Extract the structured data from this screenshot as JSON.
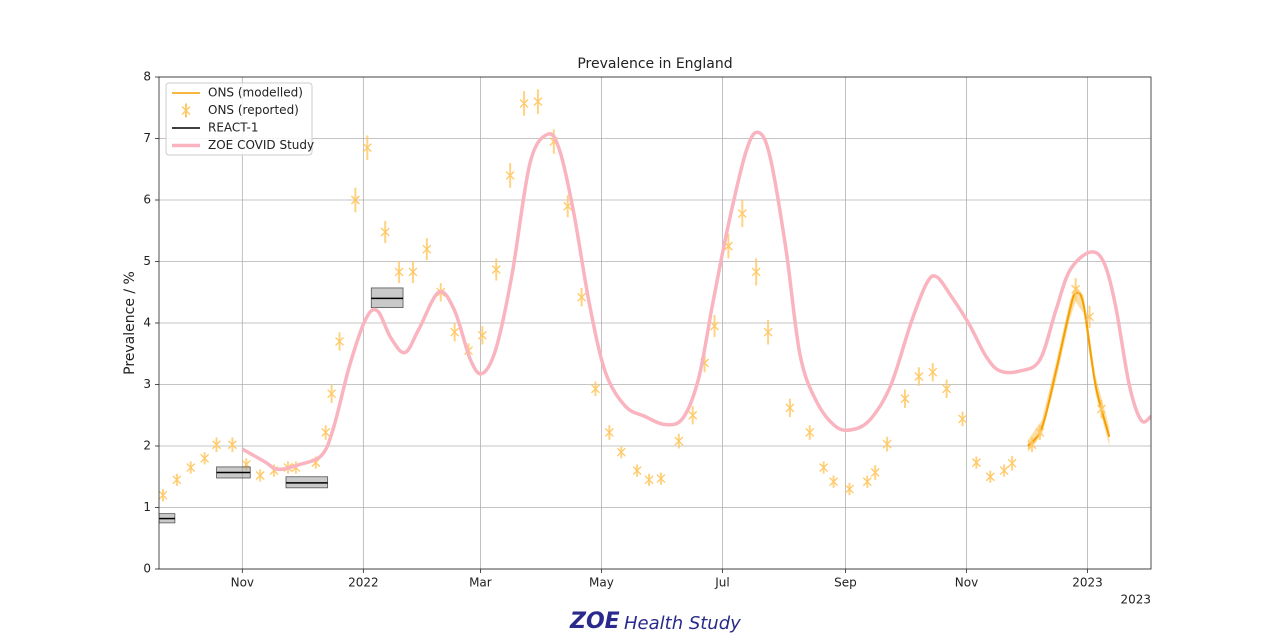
{
  "chart_data": {
    "type": "line",
    "title": "Prevalence in England",
    "ylabel": "Prevalence / %",
    "x_offset_label": "2023",
    "xlim": [
      "2021-09-20",
      "2023-02-02"
    ],
    "xticks": [
      {
        "value": "2021-11-01",
        "label": "Nov"
      },
      {
        "value": "2022-01-01",
        "label": "2022"
      },
      {
        "value": "2022-03-01",
        "label": "Mar"
      },
      {
        "value": "2022-05-01",
        "label": "May"
      },
      {
        "value": "2022-07-01",
        "label": "Jul"
      },
      {
        "value": "2022-09-01",
        "label": "Sep"
      },
      {
        "value": "2022-11-01",
        "label": "Nov"
      },
      {
        "value": "2023-01-01",
        "label": "2023"
      }
    ],
    "ylim": [
      0,
      8
    ],
    "yticks": [
      0,
      1,
      2,
      3,
      4,
      5,
      6,
      7,
      8
    ],
    "grid": true,
    "legend": "upper left",
    "series": [
      {
        "name": "ONS (modelled)",
        "type": "band_line",
        "color": "#f5a000",
        "x": [
          "2022-12-02",
          "2022-12-09",
          "2022-12-16",
          "2022-12-23",
          "2022-12-26",
          "2022-12-30",
          "2023-01-05",
          "2023-01-12"
        ],
        "values": [
          2.0,
          2.3,
          3.2,
          4.2,
          4.48,
          4.3,
          3.0,
          2.15
        ],
        "lower": [
          1.9,
          2.18,
          3.05,
          4.05,
          4.35,
          4.15,
          2.85,
          2.0
        ],
        "upper": [
          2.1,
          2.42,
          3.35,
          4.35,
          4.62,
          4.45,
          3.15,
          2.3
        ]
      },
      {
        "name": "ONS (reported)",
        "type": "errorbar",
        "color": "#ffc864",
        "x": [
          "2021-09-22",
          "2021-09-29",
          "2021-10-06",
          "2021-10-13",
          "2021-10-19",
          "2021-10-27",
          "2021-11-03",
          "2021-11-10",
          "2021-11-17",
          "2021-11-24",
          "2021-11-28",
          "2021-12-08",
          "2021-12-13",
          "2021-12-16",
          "2021-12-20",
          "2021-12-28",
          "2022-01-03",
          "2022-01-12",
          "2022-01-19",
          "2022-01-26",
          "2022-02-02",
          "2022-02-09",
          "2022-02-16",
          "2022-02-23",
          "2022-03-02",
          "2022-03-09",
          "2022-03-16",
          "2022-03-23",
          "2022-03-30",
          "2022-04-07",
          "2022-04-14",
          "2022-04-21",
          "2022-04-28",
          "2022-05-05",
          "2022-05-11",
          "2022-05-19",
          "2022-05-25",
          "2022-05-31",
          "2022-06-09",
          "2022-06-16",
          "2022-06-22",
          "2022-06-27",
          "2022-07-04",
          "2022-07-11",
          "2022-07-18",
          "2022-07-24",
          "2022-08-04",
          "2022-08-14",
          "2022-08-21",
          "2022-08-26",
          "2022-09-03",
          "2022-09-12",
          "2022-09-16",
          "2022-09-22",
          "2022-10-01",
          "2022-10-08",
          "2022-10-15",
          "2022-10-22",
          "2022-10-30",
          "2022-11-06",
          "2022-11-13",
          "2022-11-20",
          "2022-11-24",
          "2022-12-04",
          "2022-12-08",
          "2022-12-26",
          "2023-01-02",
          "2023-01-08"
        ],
        "values": [
          1.2,
          1.45,
          1.65,
          1.8,
          2.02,
          2.02,
          1.7,
          1.52,
          1.6,
          1.65,
          1.65,
          1.73,
          2.22,
          2.85,
          3.7,
          6.0,
          6.85,
          5.48,
          4.83,
          4.83,
          5.2,
          4.5,
          3.85,
          3.55,
          3.8,
          4.87,
          6.4,
          7.57,
          7.6,
          6.95,
          5.9,
          4.42,
          2.93,
          2.22,
          1.9,
          1.6,
          1.45,
          1.47,
          2.08,
          2.5,
          3.35,
          3.95,
          5.25,
          5.78,
          4.83,
          3.85,
          2.62,
          2.22,
          1.65,
          1.42,
          1.3,
          1.42,
          1.57,
          2.03,
          2.77,
          3.13,
          3.2,
          2.93,
          2.44,
          1.73,
          1.5,
          1.6,
          1.72,
          2.02,
          2.22,
          4.55,
          4.1,
          2.6
        ],
        "errors": [
          0.1,
          0.1,
          0.1,
          0.1,
          0.12,
          0.12,
          0.1,
          0.1,
          0.1,
          0.1,
          0.1,
          0.1,
          0.12,
          0.15,
          0.15,
          0.2,
          0.2,
          0.18,
          0.18,
          0.18,
          0.18,
          0.15,
          0.15,
          0.12,
          0.15,
          0.18,
          0.2,
          0.2,
          0.2,
          0.2,
          0.18,
          0.15,
          0.12,
          0.12,
          0.1,
          0.1,
          0.1,
          0.1,
          0.12,
          0.15,
          0.15,
          0.18,
          0.2,
          0.22,
          0.22,
          0.2,
          0.15,
          0.12,
          0.1,
          0.1,
          0.1,
          0.1,
          0.12,
          0.12,
          0.15,
          0.15,
          0.15,
          0.15,
          0.12,
          0.1,
          0.1,
          0.1,
          0.12,
          0.12,
          0.12,
          0.18,
          0.18,
          0.15
        ]
      },
      {
        "name": "REACT-1",
        "type": "range",
        "color": "#000000",
        "start": [
          "2021-09-20",
          "2021-10-19",
          "2021-11-23",
          "2022-01-05"
        ],
        "end": [
          "2021-09-28",
          "2021-11-05",
          "2021-12-14",
          "2022-01-21"
        ],
        "values": [
          0.82,
          1.57,
          1.4,
          4.4
        ],
        "lower": [
          0.75,
          1.48,
          1.32,
          4.25
        ],
        "upper": [
          0.9,
          1.66,
          1.5,
          4.57
        ]
      },
      {
        "name": "ZOE COVID Study",
        "type": "line",
        "color": "#f9b4c0",
        "x": [
          "2021-11-01",
          "2021-11-12",
          "2021-11-19",
          "2021-11-30",
          "2021-12-11",
          "2021-12-17",
          "2021-12-25",
          "2022-01-02",
          "2022-01-08",
          "2022-01-15",
          "2022-01-22",
          "2022-01-29",
          "2022-02-08",
          "2022-02-16",
          "2022-02-24",
          "2022-03-02",
          "2022-03-09",
          "2022-03-17",
          "2022-03-26",
          "2022-04-04",
          "2022-04-10",
          "2022-04-17",
          "2022-04-25",
          "2022-05-03",
          "2022-05-13",
          "2022-05-23",
          "2022-06-02",
          "2022-06-11",
          "2022-06-19",
          "2022-06-26",
          "2022-07-04",
          "2022-07-13",
          "2022-07-19",
          "2022-07-25",
          "2022-08-02",
          "2022-08-09",
          "2022-08-17",
          "2022-08-27",
          "2022-09-05",
          "2022-09-14",
          "2022-09-24",
          "2022-10-04",
          "2022-10-12",
          "2022-10-17",
          "2022-10-24",
          "2022-11-02",
          "2022-11-11",
          "2022-11-18",
          "2022-11-28",
          "2022-12-08",
          "2022-12-16",
          "2022-12-23",
          "2023-01-02",
          "2023-01-09",
          "2023-01-15",
          "2023-01-22",
          "2023-01-28",
          "2023-02-02"
        ],
        "values": [
          1.95,
          1.75,
          1.62,
          1.7,
          1.85,
          2.3,
          3.3,
          4.05,
          4.2,
          3.75,
          3.52,
          3.9,
          4.5,
          4.2,
          3.4,
          3.18,
          3.6,
          4.8,
          6.6,
          7.07,
          6.8,
          5.8,
          4.3,
          3.2,
          2.65,
          2.48,
          2.35,
          2.45,
          3.1,
          4.3,
          5.6,
          6.8,
          7.1,
          6.7,
          5.2,
          3.5,
          2.75,
          2.32,
          2.27,
          2.45,
          3.0,
          4.0,
          4.65,
          4.75,
          4.45,
          4.0,
          3.45,
          3.22,
          3.22,
          3.4,
          4.2,
          4.85,
          5.15,
          5.0,
          4.3,
          3.0,
          2.42,
          2.48
        ]
      }
    ]
  },
  "brand": {
    "mark": "ZOE",
    "name": "Health Study"
  }
}
